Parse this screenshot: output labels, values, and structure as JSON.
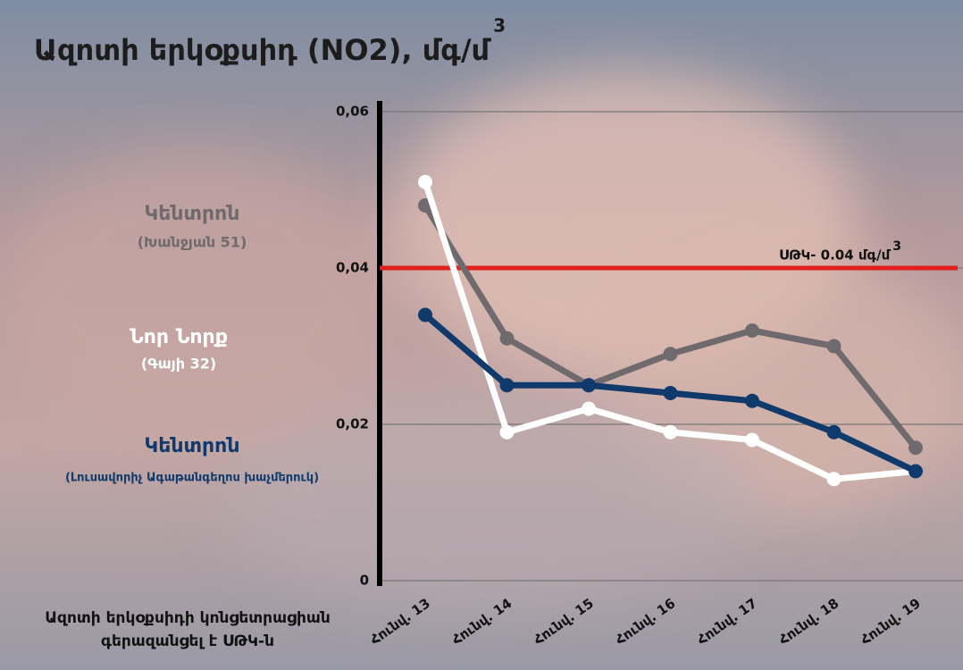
{
  "chart_data": {
    "type": "line",
    "title": "Ազոտի երկօքսիդ (NO2), մգ/մ",
    "title_sup": "3",
    "categories": [
      "Հունվ. 13",
      "Հունվ. 14",
      "Հունվ. 15",
      "Հունվ. 16",
      "Հունվ. 17",
      "Հունվ. 18",
      "Հունվ. 19"
    ],
    "series": [
      {
        "name": "Կենտրոն",
        "location": "(Խանջյան 51)",
        "color": "#6e6a6d",
        "values": [
          0.048,
          0.031,
          0.025,
          0.029,
          0.032,
          0.03,
          0.017
        ]
      },
      {
        "name": "Նոր Նորք",
        "location": "(Գայի 32)",
        "color": "#ffffff",
        "values": [
          0.051,
          0.019,
          0.022,
          0.019,
          0.018,
          0.013,
          0.014
        ]
      },
      {
        "name": "Կենտրոն",
        "location": "(Լուսավորիչ Ագաթանգեղոս խաչմերուկ)",
        "color": "#103a6c",
        "values": [
          0.034,
          0.025,
          0.025,
          0.024,
          0.023,
          0.019,
          0.014
        ]
      }
    ],
    "ylim": [
      0,
      0.06
    ],
    "yticks": [
      {
        "value": 0,
        "label": "0"
      },
      {
        "value": 0.02,
        "label": "0,02"
      },
      {
        "value": 0.04,
        "label": "0,04"
      },
      {
        "value": 0.06,
        "label": "0,06"
      }
    ],
    "grid": true,
    "threshold": {
      "value": 0.04,
      "label": "ՍԹԿ- 0.04 մգ/մ",
      "sup": "3",
      "color": "#e21f1d"
    },
    "footnote": [
      "Ազոտի երկօքսիդի կոնցետրացիան",
      "գերազանցել է ՍԹԿ-ն"
    ]
  }
}
